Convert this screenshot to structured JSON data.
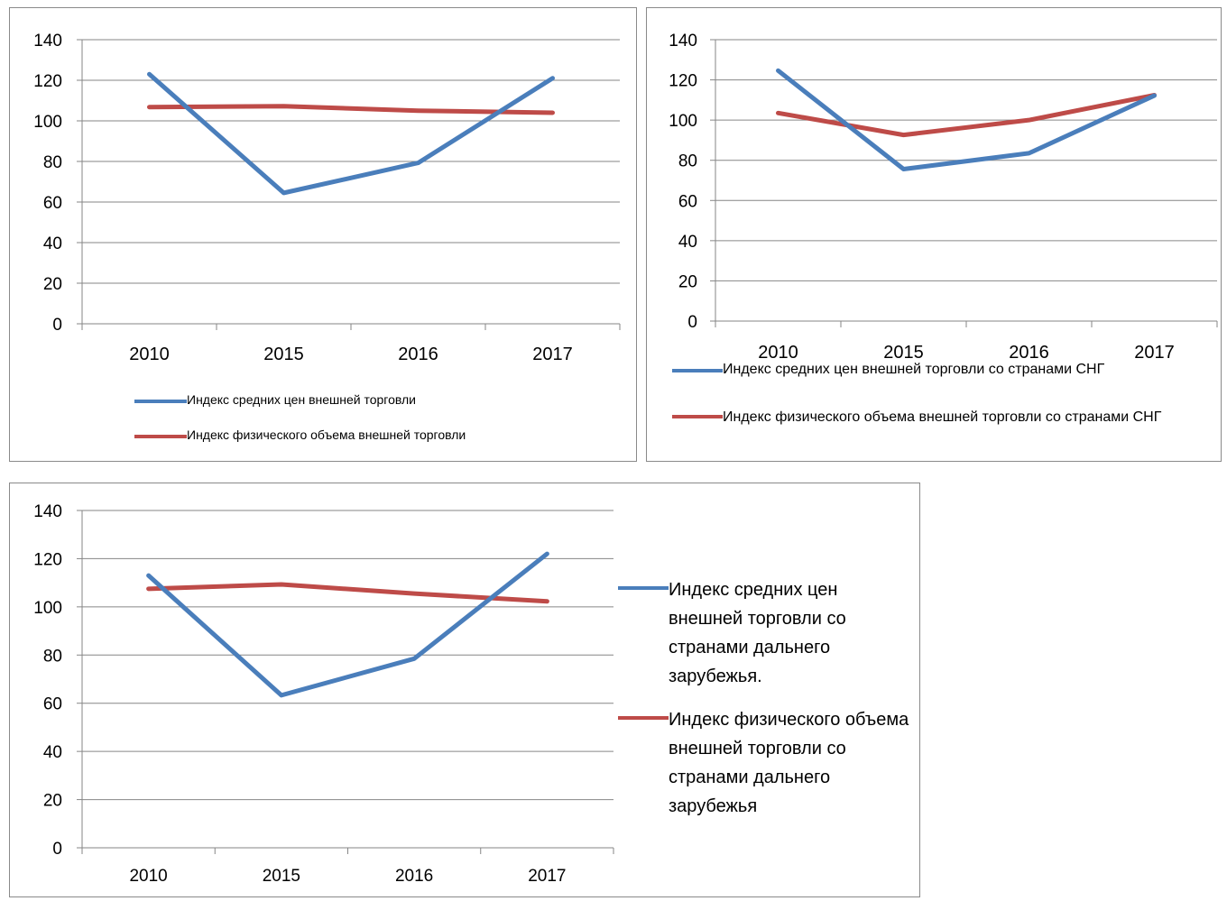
{
  "colors": {
    "price_index": "#4a7ebb",
    "volume_index": "#be4b48",
    "grid": "#868686",
    "axis": "#868686"
  },
  "chart_data": [
    {
      "type": "line",
      "title": "",
      "xlabel": "",
      "ylabel": "",
      "x": [
        "2010",
        "2015",
        "2016",
        "2017"
      ],
      "ylim": [
        0,
        140
      ],
      "yticks": [
        "0",
        "20",
        "40",
        "60",
        "80",
        "100",
        "120",
        "140"
      ],
      "grid": true,
      "legend_position": "bottom",
      "series": [
        {
          "name": "Индекс средних цен внешней торговли",
          "color": "#4a7ebb",
          "values": [
            123,
            64.5,
            79.3,
            121
          ]
        },
        {
          "name": "Индекс физического объема внешней торговли",
          "color": "#be4b48",
          "values": [
            106.8,
            107.2,
            105,
            104
          ]
        }
      ]
    },
    {
      "type": "line",
      "title": "",
      "xlabel": "",
      "ylabel": "",
      "x": [
        "2010",
        "2015",
        "2016",
        "2017"
      ],
      "ylim": [
        0,
        140
      ],
      "yticks": [
        "0",
        "20",
        "40",
        "60",
        "80",
        "100",
        "120",
        "140"
      ],
      "grid": true,
      "legend_position": "bottom",
      "series": [
        {
          "name": "Индекс средних цен внешней торговли со странами СНГ",
          "color": "#4a7ebb",
          "values": [
            124.6,
            75.6,
            83.5,
            112.2
          ]
        },
        {
          "name": "Индекс физического объема внешней торговли со странами СНГ",
          "color": "#be4b48",
          "values": [
            103.5,
            92.6,
            100,
            112.4
          ]
        }
      ]
    },
    {
      "type": "line",
      "title": "",
      "xlabel": "",
      "ylabel": "",
      "x": [
        "2010",
        "2015",
        "2016",
        "2017"
      ],
      "ylim": [
        0,
        140
      ],
      "yticks": [
        "0",
        "20",
        "40",
        "60",
        "80",
        "100",
        "120",
        "140"
      ],
      "grid": true,
      "legend_position": "right",
      "series": [
        {
          "name": "Индекс средних цен внешней торговли со странами дальнего зарубежья.",
          "color": "#4a7ebb",
          "values": [
            113,
            63.3,
            78.5,
            122
          ]
        },
        {
          "name": "Индекс физического объема внешней торговли со странами дальнего зарубежья",
          "color": "#be4b48",
          "values": [
            107.5,
            109.3,
            105.5,
            102.3
          ]
        }
      ]
    }
  ]
}
